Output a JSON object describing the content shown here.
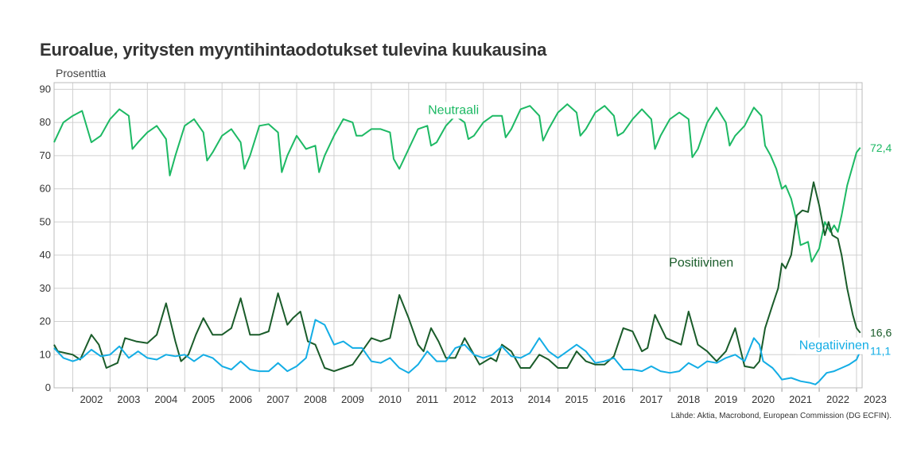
{
  "chart_data": {
    "type": "line",
    "title": "Euroalue, yritysten myyntihintaodotukset tulevina kuukausina",
    "ylabel": "Prosenttia",
    "source": "Lähde: Aktia, Macrobond, European Commission (DG ECFIN).",
    "ylim": [
      0,
      92
    ],
    "yticks": [
      "0",
      "10",
      "20",
      "30",
      "40",
      "50",
      "60",
      "70",
      "80",
      "90"
    ],
    "xlim": [
      2001.5,
      2023.15
    ],
    "xticks": [
      "2002",
      "2003",
      "2004",
      "2005",
      "2006",
      "2007",
      "2008",
      "2009",
      "2010",
      "2011",
      "2012",
      "2013",
      "2014",
      "2015",
      "2016",
      "2017",
      "2018",
      "2019",
      "2020",
      "2021",
      "2022",
      "2023"
    ],
    "grid": true,
    "legend": "inline labels",
    "series": [
      {
        "name": "Neutraali",
        "color": "#1db964",
        "end_label": "72,4",
        "points": [
          [
            2001.5,
            74
          ],
          [
            2001.75,
            80
          ],
          [
            2002.0,
            82
          ],
          [
            2002.25,
            83.5
          ],
          [
            2002.5,
            74
          ],
          [
            2002.75,
            76
          ],
          [
            2003.0,
            81
          ],
          [
            2003.25,
            84
          ],
          [
            2003.5,
            82
          ],
          [
            2003.6,
            72
          ],
          [
            2003.75,
            74
          ],
          [
            2004.0,
            77
          ],
          [
            2004.25,
            79
          ],
          [
            2004.5,
            75
          ],
          [
            2004.6,
            64
          ],
          [
            2004.75,
            70
          ],
          [
            2005.0,
            79
          ],
          [
            2005.25,
            81
          ],
          [
            2005.5,
            77
          ],
          [
            2005.6,
            68.5
          ],
          [
            2005.75,
            71
          ],
          [
            2006.0,
            76
          ],
          [
            2006.25,
            78
          ],
          [
            2006.5,
            74
          ],
          [
            2006.6,
            66
          ],
          [
            2006.75,
            70
          ],
          [
            2007.0,
            79
          ],
          [
            2007.25,
            79.5
          ],
          [
            2007.5,
            77
          ],
          [
            2007.6,
            65
          ],
          [
            2007.75,
            70
          ],
          [
            2008.0,
            76
          ],
          [
            2008.25,
            72
          ],
          [
            2008.5,
            73
          ],
          [
            2008.6,
            65
          ],
          [
            2008.75,
            70
          ],
          [
            2009.0,
            76
          ],
          [
            2009.25,
            81
          ],
          [
            2009.5,
            80
          ],
          [
            2009.6,
            76
          ],
          [
            2009.75,
            76
          ],
          [
            2010.0,
            78
          ],
          [
            2010.25,
            78
          ],
          [
            2010.5,
            77
          ],
          [
            2010.6,
            69
          ],
          [
            2010.75,
            66
          ],
          [
            2011.0,
            72
          ],
          [
            2011.25,
            78
          ],
          [
            2011.5,
            79
          ],
          [
            2011.6,
            73
          ],
          [
            2011.75,
            74
          ],
          [
            2012.0,
            79
          ],
          [
            2012.25,
            82
          ],
          [
            2012.5,
            80
          ],
          [
            2012.6,
            75
          ],
          [
            2012.75,
            76
          ],
          [
            2013.0,
            80
          ],
          [
            2013.25,
            82
          ],
          [
            2013.5,
            82
          ],
          [
            2013.6,
            75.5
          ],
          [
            2013.75,
            78
          ],
          [
            2014.0,
            84
          ],
          [
            2014.25,
            85
          ],
          [
            2014.5,
            82
          ],
          [
            2014.6,
            74.5
          ],
          [
            2014.75,
            78
          ],
          [
            2015.0,
            83
          ],
          [
            2015.25,
            85.5
          ],
          [
            2015.5,
            83
          ],
          [
            2015.6,
            76
          ],
          [
            2015.75,
            78
          ],
          [
            2016.0,
            83
          ],
          [
            2016.25,
            85
          ],
          [
            2016.5,
            82
          ],
          [
            2016.6,
            76
          ],
          [
            2016.75,
            77
          ],
          [
            2017.0,
            81
          ],
          [
            2017.25,
            84
          ],
          [
            2017.5,
            81
          ],
          [
            2017.6,
            72
          ],
          [
            2017.75,
            76
          ],
          [
            2018.0,
            81
          ],
          [
            2018.25,
            83
          ],
          [
            2018.5,
            81
          ],
          [
            2018.6,
            69.5
          ],
          [
            2018.75,
            72
          ],
          [
            2019.0,
            80
          ],
          [
            2019.25,
            84.5
          ],
          [
            2019.5,
            80
          ],
          [
            2019.6,
            73
          ],
          [
            2019.75,
            76
          ],
          [
            2020.0,
            79
          ],
          [
            2020.25,
            84.5
          ],
          [
            2020.45,
            82
          ],
          [
            2020.55,
            73
          ],
          [
            2020.7,
            70
          ],
          [
            2020.85,
            66
          ],
          [
            2021.0,
            60
          ],
          [
            2021.1,
            61
          ],
          [
            2021.25,
            57
          ],
          [
            2021.4,
            50
          ],
          [
            2021.5,
            43
          ],
          [
            2021.7,
            44
          ],
          [
            2021.8,
            38
          ],
          [
            2022.0,
            42
          ],
          [
            2022.15,
            50
          ],
          [
            2022.3,
            47
          ],
          [
            2022.4,
            49
          ],
          [
            2022.5,
            47
          ],
          [
            2022.6,
            52
          ],
          [
            2022.75,
            61
          ],
          [
            2022.9,
            67
          ],
          [
            2023.0,
            71
          ],
          [
            2023.1,
            72.4
          ]
        ]
      },
      {
        "name": "Positiivinen",
        "color": "#1a5c2a",
        "end_label": "16,6",
        "points": [
          [
            2001.5,
            13
          ],
          [
            2001.6,
            11
          ],
          [
            2002.0,
            10
          ],
          [
            2002.2,
            8.5
          ],
          [
            2002.5,
            16
          ],
          [
            2002.7,
            13
          ],
          [
            2002.9,
            6
          ],
          [
            2003.2,
            7.5
          ],
          [
            2003.4,
            15
          ],
          [
            2003.7,
            14
          ],
          [
            2004.0,
            13.5
          ],
          [
            2004.25,
            16
          ],
          [
            2004.5,
            25.5
          ],
          [
            2004.75,
            14
          ],
          [
            2004.9,
            8
          ],
          [
            2005.1,
            10
          ],
          [
            2005.3,
            16
          ],
          [
            2005.5,
            21
          ],
          [
            2005.75,
            16
          ],
          [
            2006.0,
            16
          ],
          [
            2006.25,
            18
          ],
          [
            2006.5,
            27
          ],
          [
            2006.75,
            16
          ],
          [
            2007.0,
            16
          ],
          [
            2007.25,
            17
          ],
          [
            2007.5,
            28.5
          ],
          [
            2007.75,
            19
          ],
          [
            2007.9,
            21
          ],
          [
            2008.1,
            23
          ],
          [
            2008.3,
            14
          ],
          [
            2008.5,
            13
          ],
          [
            2008.75,
            6
          ],
          [
            2009.0,
            5
          ],
          [
            2009.25,
            6
          ],
          [
            2009.5,
            7
          ],
          [
            2009.75,
            11
          ],
          [
            2010.0,
            15
          ],
          [
            2010.25,
            14
          ],
          [
            2010.5,
            15
          ],
          [
            2010.75,
            28
          ],
          [
            2011.0,
            21
          ],
          [
            2011.25,
            13
          ],
          [
            2011.4,
            11
          ],
          [
            2011.6,
            18
          ],
          [
            2011.8,
            14
          ],
          [
            2012.0,
            9
          ],
          [
            2012.25,
            9
          ],
          [
            2012.5,
            15
          ],
          [
            2012.7,
            11
          ],
          [
            2012.9,
            7
          ],
          [
            2013.2,
            9
          ],
          [
            2013.35,
            8
          ],
          [
            2013.5,
            13
          ],
          [
            2013.75,
            11
          ],
          [
            2014.0,
            6
          ],
          [
            2014.25,
            6
          ],
          [
            2014.5,
            10
          ],
          [
            2014.75,
            8.5
          ],
          [
            2015.0,
            6
          ],
          [
            2015.25,
            6
          ],
          [
            2015.5,
            11
          ],
          [
            2015.75,
            8
          ],
          [
            2016.0,
            7
          ],
          [
            2016.25,
            7
          ],
          [
            2016.5,
            9.5
          ],
          [
            2016.75,
            18
          ],
          [
            2017.0,
            17
          ],
          [
            2017.25,
            11
          ],
          [
            2017.4,
            12
          ],
          [
            2017.6,
            22
          ],
          [
            2017.9,
            15
          ],
          [
            2018.1,
            14
          ],
          [
            2018.3,
            13
          ],
          [
            2018.5,
            23
          ],
          [
            2018.75,
            13
          ],
          [
            2019.0,
            11
          ],
          [
            2019.25,
            8
          ],
          [
            2019.5,
            11
          ],
          [
            2019.75,
            18
          ],
          [
            2020.0,
            6.5
          ],
          [
            2020.25,
            6
          ],
          [
            2020.4,
            8
          ],
          [
            2020.55,
            18
          ],
          [
            2020.75,
            25
          ],
          [
            2020.9,
            30
          ],
          [
            2021.0,
            37.5
          ],
          [
            2021.1,
            36
          ],
          [
            2021.25,
            40
          ],
          [
            2021.4,
            52
          ],
          [
            2021.55,
            53.5
          ],
          [
            2021.7,
            53
          ],
          [
            2021.85,
            62
          ],
          [
            2022.0,
            55
          ],
          [
            2022.15,
            46
          ],
          [
            2022.25,
            50
          ],
          [
            2022.35,
            46
          ],
          [
            2022.5,
            45
          ],
          [
            2022.6,
            40
          ],
          [
            2022.75,
            30
          ],
          [
            2022.9,
            22
          ],
          [
            2023.0,
            18
          ],
          [
            2023.1,
            16.6
          ]
        ]
      },
      {
        "name": "Negatiivinen",
        "color": "#13ade5",
        "end_label": "11,1",
        "points": [
          [
            2001.5,
            12
          ],
          [
            2001.75,
            9
          ],
          [
            2002.0,
            8
          ],
          [
            2002.25,
            9
          ],
          [
            2002.5,
            11.5
          ],
          [
            2002.75,
            9.5
          ],
          [
            2003.0,
            10
          ],
          [
            2003.25,
            12.5
          ],
          [
            2003.5,
            9
          ],
          [
            2003.75,
            11
          ],
          [
            2004.0,
            9
          ],
          [
            2004.25,
            8.5
          ],
          [
            2004.5,
            10
          ],
          [
            2004.75,
            9.5
          ],
          [
            2005.0,
            10
          ],
          [
            2005.25,
            8
          ],
          [
            2005.5,
            10
          ],
          [
            2005.75,
            9
          ],
          [
            2006.0,
            6.5
          ],
          [
            2006.25,
            5.5
          ],
          [
            2006.5,
            8
          ],
          [
            2006.75,
            5.5
          ],
          [
            2007.0,
            5
          ],
          [
            2007.25,
            5
          ],
          [
            2007.5,
            7.5
          ],
          [
            2007.75,
            5
          ],
          [
            2008.0,
            6.5
          ],
          [
            2008.25,
            9
          ],
          [
            2008.5,
            20.5
          ],
          [
            2008.75,
            19
          ],
          [
            2009.0,
            13
          ],
          [
            2009.25,
            14
          ],
          [
            2009.5,
            12
          ],
          [
            2009.75,
            12
          ],
          [
            2010.0,
            8
          ],
          [
            2010.25,
            7.5
          ],
          [
            2010.5,
            9
          ],
          [
            2010.75,
            6
          ],
          [
            2011.0,
            4.5
          ],
          [
            2011.25,
            7
          ],
          [
            2011.5,
            11
          ],
          [
            2011.75,
            8
          ],
          [
            2012.0,
            8
          ],
          [
            2012.25,
            12
          ],
          [
            2012.5,
            13
          ],
          [
            2012.75,
            10
          ],
          [
            2013.0,
            9
          ],
          [
            2013.25,
            10
          ],
          [
            2013.5,
            12.5
          ],
          [
            2013.75,
            9.5
          ],
          [
            2014.0,
            9
          ],
          [
            2014.25,
            10.5
          ],
          [
            2014.5,
            15
          ],
          [
            2014.75,
            11
          ],
          [
            2015.0,
            9
          ],
          [
            2015.25,
            11
          ],
          [
            2015.5,
            13
          ],
          [
            2015.75,
            11
          ],
          [
            2016.0,
            7.5
          ],
          [
            2016.25,
            8
          ],
          [
            2016.5,
            9
          ],
          [
            2016.75,
            5.5
          ],
          [
            2017.0,
            5.5
          ],
          [
            2017.25,
            5
          ],
          [
            2017.5,
            6.5
          ],
          [
            2017.75,
            5
          ],
          [
            2018.0,
            4.5
          ],
          [
            2018.25,
            5
          ],
          [
            2018.5,
            7.5
          ],
          [
            2018.75,
            6
          ],
          [
            2019.0,
            8
          ],
          [
            2019.25,
            7.5
          ],
          [
            2019.5,
            9
          ],
          [
            2019.75,
            10
          ],
          [
            2020.0,
            8
          ],
          [
            2020.25,
            15
          ],
          [
            2020.4,
            13
          ],
          [
            2020.5,
            8
          ],
          [
            2020.75,
            6
          ],
          [
            2020.9,
            4
          ],
          [
            2021.0,
            2.5
          ],
          [
            2021.25,
            3
          ],
          [
            2021.5,
            2
          ],
          [
            2021.75,
            1.5
          ],
          [
            2021.9,
            1
          ],
          [
            2022.0,
            2
          ],
          [
            2022.2,
            4.5
          ],
          [
            2022.4,
            5
          ],
          [
            2022.6,
            6
          ],
          [
            2022.8,
            7
          ],
          [
            2023.0,
            8.5
          ],
          [
            2023.1,
            11.1
          ]
        ]
      }
    ]
  }
}
